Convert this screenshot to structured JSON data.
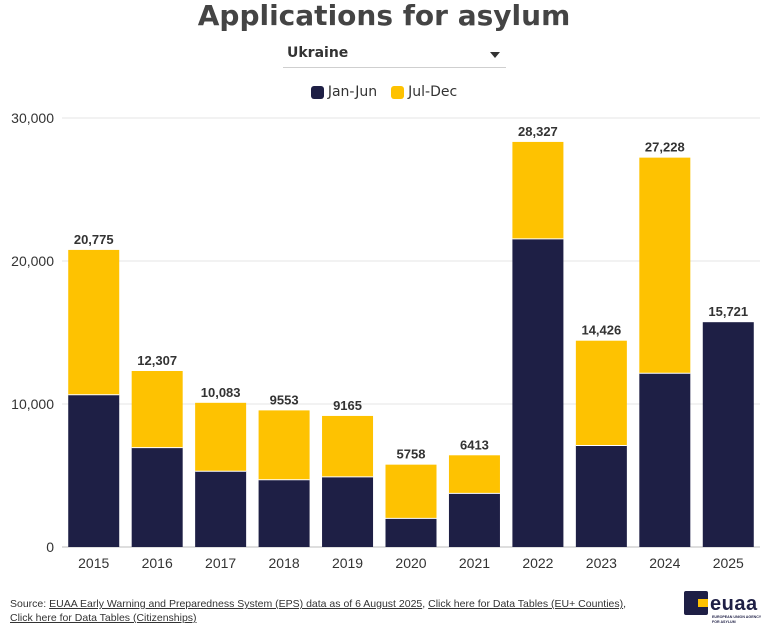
{
  "title": "Applications for asylum",
  "selector": {
    "selected": "Ukraine"
  },
  "legend": [
    {
      "label": "Jan-Jun",
      "color": "#1e1f45"
    },
    {
      "label": "Jul-Dec",
      "color": "#fec201"
    }
  ],
  "chart_data": {
    "type": "bar",
    "stacked": true,
    "title": "Applications for asylum",
    "xlabel": "",
    "ylabel": "",
    "categories": [
      "2015",
      "2016",
      "2017",
      "2018",
      "2019",
      "2020",
      "2021",
      "2022",
      "2023",
      "2024",
      "2025"
    ],
    "series": [
      {
        "name": "Jan-Jun",
        "color": "#1e1f45",
        "values": [
          10650,
          6950,
          5300,
          4700,
          4900,
          2000,
          3750,
          21550,
          7100,
          12150,
          15721
        ]
      },
      {
        "name": "Jul-Dec",
        "color": "#fec201",
        "values": [
          10125,
          5357,
          4783,
          4853,
          4265,
          3758,
          2663,
          6777,
          7326,
          15078,
          0
        ]
      }
    ],
    "totals": [
      "20,775",
      "12,307",
      "10,083",
      "9553",
      "9165",
      "5758",
      "6413",
      "28,327",
      "14,426",
      "27,228",
      "15,721"
    ],
    "ylim": [
      0,
      30000
    ],
    "yticks": [
      0,
      10000,
      20000,
      30000
    ],
    "ytick_labels": [
      "0",
      "10,000",
      "20,000",
      "30,000"
    ],
    "grid": true,
    "legend_position": "top-center"
  },
  "footer": {
    "source_prefix": "Source: ",
    "link1": "EUAA Early Warning and Preparedness System (EPS) data as of 6 August 2025",
    "sep": ", ",
    "link2": "Click here for Data Tables (EU+ Counties)",
    "sep2": ",",
    "link3": "Click here for Data Tables (Citizenships)"
  },
  "logo": {
    "name": "euaa",
    "subtitle": "EUROPEAN UNION AGENCY FOR ASYLUM"
  }
}
